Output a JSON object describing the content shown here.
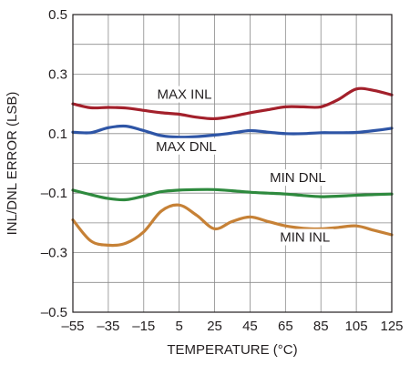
{
  "chart_data": {
    "type": "line",
    "title": "",
    "xlabel": "TEMPERATURE (°C)",
    "ylabel": "INL/DNL ERROR (LSB)",
    "xlim": [
      -55,
      125
    ],
    "ylim": [
      -0.5,
      0.5
    ],
    "x_ticks": [
      -55,
      -35,
      -15,
      5,
      25,
      45,
      65,
      85,
      105,
      125
    ],
    "x_tick_labels": [
      "–55",
      "–35",
      "–15",
      "5",
      "25",
      "45",
      "65",
      "85",
      "105",
      "125"
    ],
    "y_ticks": [
      -0.5,
      -0.3,
      -0.1,
      0.1,
      0.3,
      0.5
    ],
    "y_tick_labels": [
      "–0.5",
      "–0.3",
      "–0.1",
      "0.1",
      "0.3",
      "0.5"
    ],
    "grid": true,
    "legend": "inline labels",
    "series": [
      {
        "name": "MAX INL",
        "color": "#a3202b",
        "x": [
          -55,
          -45,
          -35,
          -25,
          -15,
          -5,
          5,
          15,
          25,
          35,
          45,
          55,
          65,
          75,
          85,
          95,
          105,
          115,
          125
        ],
        "y": [
          0.2,
          0.187,
          0.188,
          0.186,
          0.178,
          0.17,
          0.165,
          0.155,
          0.15,
          0.158,
          0.17,
          0.18,
          0.19,
          0.19,
          0.19,
          0.215,
          0.25,
          0.245,
          0.23
        ]
      },
      {
        "name": "MAX DNL",
        "color": "#2e55a6",
        "x": [
          -55,
          -45,
          -35,
          -25,
          -15,
          -5,
          5,
          15,
          25,
          35,
          45,
          55,
          65,
          75,
          85,
          95,
          105,
          115,
          125
        ],
        "y": [
          0.105,
          0.103,
          0.12,
          0.125,
          0.11,
          0.093,
          0.088,
          0.09,
          0.095,
          0.102,
          0.11,
          0.105,
          0.1,
          0.1,
          0.103,
          0.103,
          0.104,
          0.11,
          0.118
        ]
      },
      {
        "name": "MIN DNL",
        "color": "#2e8a3e",
        "x": [
          -55,
          -45,
          -35,
          -25,
          -15,
          -5,
          5,
          15,
          25,
          35,
          45,
          55,
          65,
          75,
          85,
          95,
          105,
          115,
          125
        ],
        "y": [
          -0.09,
          -0.105,
          -0.118,
          -0.122,
          -0.11,
          -0.095,
          -0.09,
          -0.088,
          -0.088,
          -0.092,
          -0.097,
          -0.1,
          -0.103,
          -0.108,
          -0.112,
          -0.11,
          -0.107,
          -0.105,
          -0.103
        ]
      },
      {
        "name": "MIN INL",
        "color": "#c68136",
        "x": [
          -55,
          -45,
          -35,
          -25,
          -15,
          -5,
          5,
          15,
          25,
          35,
          45,
          55,
          65,
          75,
          85,
          95,
          105,
          115,
          125
        ],
        "y": [
          -0.19,
          -0.26,
          -0.275,
          -0.268,
          -0.23,
          -0.16,
          -0.14,
          -0.175,
          -0.22,
          -0.195,
          -0.18,
          -0.195,
          -0.21,
          -0.218,
          -0.22,
          -0.215,
          -0.21,
          -0.225,
          -0.24
        ]
      }
    ],
    "annotations": [
      {
        "text": "MAX INL",
        "x": 8,
        "y": 0.22
      },
      {
        "text": "MAX DNL",
        "x": 9,
        "y": 0.045
      },
      {
        "text": "MIN DNL",
        "x": 72,
        "y": -0.06
      },
      {
        "text": "MIN INL",
        "x": 76,
        "y": -0.26
      }
    ]
  }
}
